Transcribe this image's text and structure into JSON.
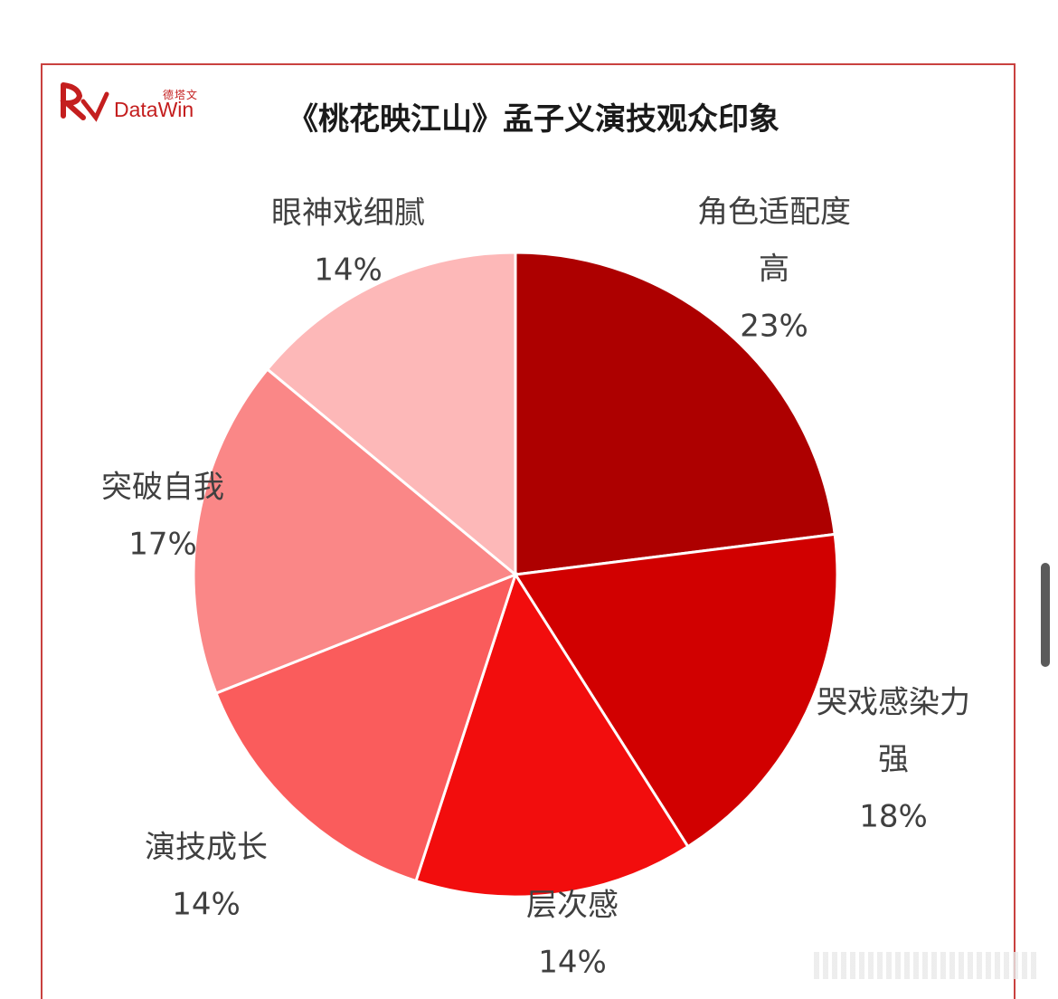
{
  "title": "《桃花映江山》孟子义演技观众印象",
  "logo": {
    "cn": "德塔文",
    "en": "DataWin"
  },
  "colors": {
    "frame": "#c9413f",
    "brand": "#c41e1e"
  },
  "chart_data": {
    "type": "pie",
    "start": "12-o'clock",
    "direction": "clockwise",
    "slices": [
      {
        "label_lines": [
          "角色适配度",
          "高"
        ],
        "value": 23,
        "value_label": "23%",
        "color": "#ad0000"
      },
      {
        "label_lines": [
          "哭戏感染力",
          "强"
        ],
        "value": 18,
        "value_label": "18%",
        "color": "#d10000"
      },
      {
        "label_lines": [
          "层次感"
        ],
        "value": 14,
        "value_label": "14%",
        "color": "#f20d0d"
      },
      {
        "label_lines": [
          "演技成长"
        ],
        "value": 14,
        "value_label": "14%",
        "color": "#fa5c5c"
      },
      {
        "label_lines": [
          "突破自我"
        ],
        "value": 17,
        "value_label": "17%",
        "color": "#fa8787"
      },
      {
        "label_lines": [
          "眼神戏细腻"
        ],
        "value": 14,
        "value_label": "14%",
        "color": "#fdb8b8"
      }
    ]
  }
}
